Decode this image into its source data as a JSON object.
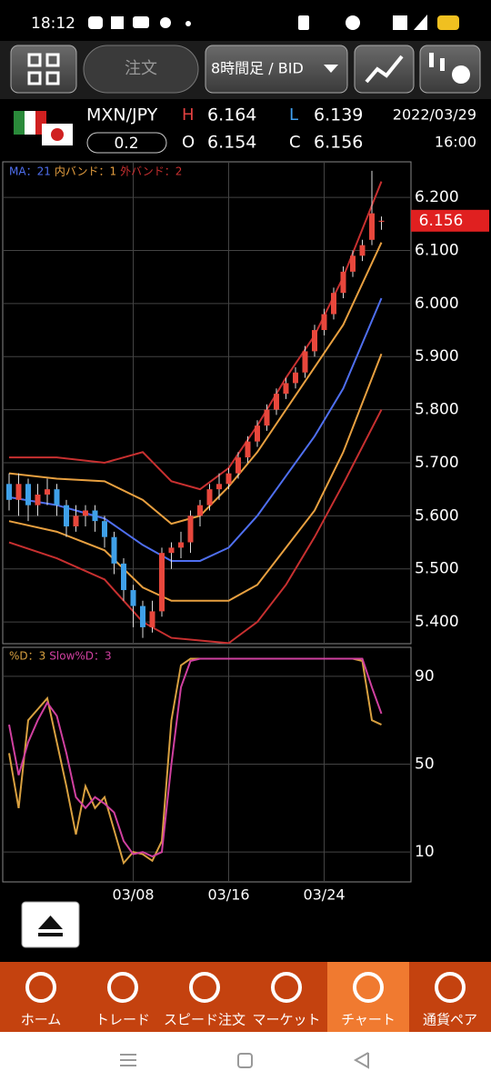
{
  "status_bar": {
    "time": "18:12"
  },
  "toolbar": {
    "order": "注文",
    "timeframe": "8時間足 / BID"
  },
  "quote": {
    "pair": "MXN/JPY",
    "spread": "0.2",
    "date": "2022/03/29",
    "time": "16:00",
    "high_label": "H",
    "high": "6.164",
    "low_label": "L",
    "low": "6.139",
    "open_label": "O",
    "open": "6.154",
    "close_label": "C",
    "close": "6.156"
  },
  "price_chart": {
    "type": "candlestick",
    "legend": [
      {
        "text": "MA：21",
        "color": "#4f6ff0"
      },
      {
        "text": "内バンド：1",
        "color": "#e8a040"
      },
      {
        "text": "外バンド：2",
        "color": "#c83030"
      }
    ],
    "up_color": "#e8473c",
    "down_color": "#3fa0e8",
    "open": [
      5.66,
      5.63,
      5.66,
      5.62,
      5.64,
      5.65,
      5.62,
      5.58,
      5.6,
      5.61,
      5.59,
      5.56,
      5.51,
      5.46,
      5.43,
      5.39,
      5.42,
      5.53,
      5.54,
      5.55,
      5.6,
      5.62,
      5.65,
      5.66,
      5.68,
      5.71,
      5.74,
      5.77,
      5.8,
      5.83,
      5.85,
      5.87,
      5.91,
      5.95,
      5.98,
      6.02,
      6.06,
      6.09,
      6.12,
      6.154
    ],
    "high": [
      5.68,
      5.68,
      5.67,
      5.66,
      5.67,
      5.66,
      5.63,
      5.62,
      5.62,
      5.62,
      5.6,
      5.57,
      5.52,
      5.47,
      5.44,
      5.44,
      5.54,
      5.55,
      5.57,
      5.61,
      5.63,
      5.66,
      5.68,
      5.69,
      5.72,
      5.75,
      5.78,
      5.81,
      5.84,
      5.86,
      5.88,
      5.92,
      5.96,
      5.99,
      6.03,
      6.07,
      6.1,
      6.12,
      6.25,
      6.164
    ],
    "low": [
      5.61,
      5.6,
      5.59,
      5.6,
      5.62,
      5.6,
      5.56,
      5.57,
      5.58,
      5.57,
      5.54,
      5.49,
      5.44,
      5.39,
      5.37,
      5.38,
      5.41,
      5.5,
      5.52,
      5.53,
      5.58,
      5.61,
      5.63,
      5.65,
      5.67,
      5.7,
      5.73,
      5.76,
      5.79,
      5.82,
      5.84,
      5.86,
      5.9,
      5.94,
      5.97,
      6.01,
      6.05,
      6.08,
      6.11,
      6.139
    ],
    "close": [
      5.63,
      5.66,
      5.62,
      5.64,
      5.65,
      5.62,
      5.58,
      5.6,
      5.61,
      5.59,
      5.56,
      5.51,
      5.46,
      5.43,
      5.39,
      5.42,
      5.53,
      5.54,
      5.55,
      5.6,
      5.62,
      5.65,
      5.66,
      5.68,
      5.71,
      5.74,
      5.77,
      5.8,
      5.83,
      5.85,
      5.87,
      5.91,
      5.95,
      5.98,
      6.02,
      6.06,
      6.09,
      6.11,
      6.17,
      6.156
    ],
    "lines": [
      {
        "color": "#4f6ff0",
        "x": [
          0,
          5,
          10,
          14,
          17,
          20,
          23,
          26,
          29,
          32,
          35,
          39
        ],
        "values": [
          5.635,
          5.62,
          5.595,
          5.545,
          5.515,
          5.515,
          5.54,
          5.6,
          5.675,
          5.75,
          5.84,
          6.01
        ]
      },
      {
        "color": "#e8a040",
        "x": [
          0,
          5,
          10,
          14,
          17,
          20,
          23,
          26,
          29,
          32,
          35,
          39
        ],
        "values": [
          5.68,
          5.67,
          5.665,
          5.63,
          5.585,
          5.6,
          5.655,
          5.72,
          5.8,
          5.88,
          5.96,
          6.115
        ]
      },
      {
        "color": "#e8a040",
        "x": [
          0,
          5,
          10,
          14,
          17,
          20,
          23,
          26,
          29,
          32,
          35,
          39
        ],
        "values": [
          5.59,
          5.57,
          5.535,
          5.465,
          5.44,
          5.44,
          5.44,
          5.47,
          5.54,
          5.61,
          5.72,
          5.905
        ]
      },
      {
        "color": "#c83030",
        "x": [
          0,
          5,
          10,
          14,
          17,
          20,
          23,
          26,
          29,
          32,
          35,
          39
        ],
        "values": [
          5.71,
          5.71,
          5.7,
          5.72,
          5.665,
          5.65,
          5.69,
          5.77,
          5.86,
          5.94,
          6.05,
          6.23
        ]
      },
      {
        "color": "#c83030",
        "x": [
          0,
          5,
          10,
          14,
          17,
          20,
          23,
          26,
          29,
          32,
          35,
          39
        ],
        "values": [
          5.55,
          5.52,
          5.48,
          5.4,
          5.37,
          5.365,
          5.36,
          5.4,
          5.47,
          5.56,
          5.66,
          5.8
        ]
      }
    ],
    "ylim": [
      5.359,
      6.267
    ],
    "yticks": [
      {
        "value": 6.2,
        "label": "6.200"
      },
      {
        "value": 6.1,
        "label": "6.100"
      },
      {
        "value": 6.0,
        "label": "6.000"
      },
      {
        "value": 5.9,
        "label": "5.900"
      },
      {
        "value": 5.8,
        "label": "5.800"
      },
      {
        "value": 5.7,
        "label": "5.700"
      },
      {
        "value": 5.6,
        "label": "5.600"
      },
      {
        "value": 5.5,
        "label": "5.500"
      },
      {
        "value": 5.4,
        "label": "5.400"
      }
    ],
    "xticks": [
      {
        "value": 13,
        "label": "03/08"
      },
      {
        "value": 23,
        "label": "03/16"
      },
      {
        "value": 33,
        "label": "03/24"
      }
    ],
    "last_price": {
      "value": 6.156,
      "label": "6.156",
      "color": "#e02020"
    },
    "grid": true
  },
  "stoch_chart": {
    "type": "line",
    "series": [
      {
        "name": "%D：3",
        "color": "#d8a040",
        "values": [
          55,
          30,
          70,
          75,
          80,
          60,
          40,
          18,
          40,
          30,
          35,
          20,
          5,
          10,
          9,
          6,
          15,
          70,
          95,
          98,
          98,
          98,
          98,
          98,
          98,
          98,
          98,
          98,
          98,
          98,
          98,
          98,
          98,
          98,
          98,
          98,
          98,
          97,
          70,
          68
        ]
      },
      {
        "name": "Slow%D：3",
        "color": "#d040a0",
        "values": [
          68,
          45,
          60,
          70,
          78,
          72,
          55,
          35,
          30,
          35,
          32,
          28,
          15,
          9,
          10,
          8,
          10,
          50,
          85,
          97,
          98,
          98,
          98,
          98,
          98,
          98,
          98,
          98,
          98,
          98,
          98,
          98,
          98,
          98,
          98,
          98,
          98,
          98,
          85,
          73
        ]
      }
    ],
    "ylim": [
      -3.6,
      103.2
    ],
    "yticks": [
      90,
      50,
      10
    ],
    "grid": true
  },
  "nav": {
    "items": [
      "ホーム",
      "トレード",
      "スピード注文",
      "マーケット",
      "チャート",
      "通貨ペア"
    ],
    "active": 4
  }
}
